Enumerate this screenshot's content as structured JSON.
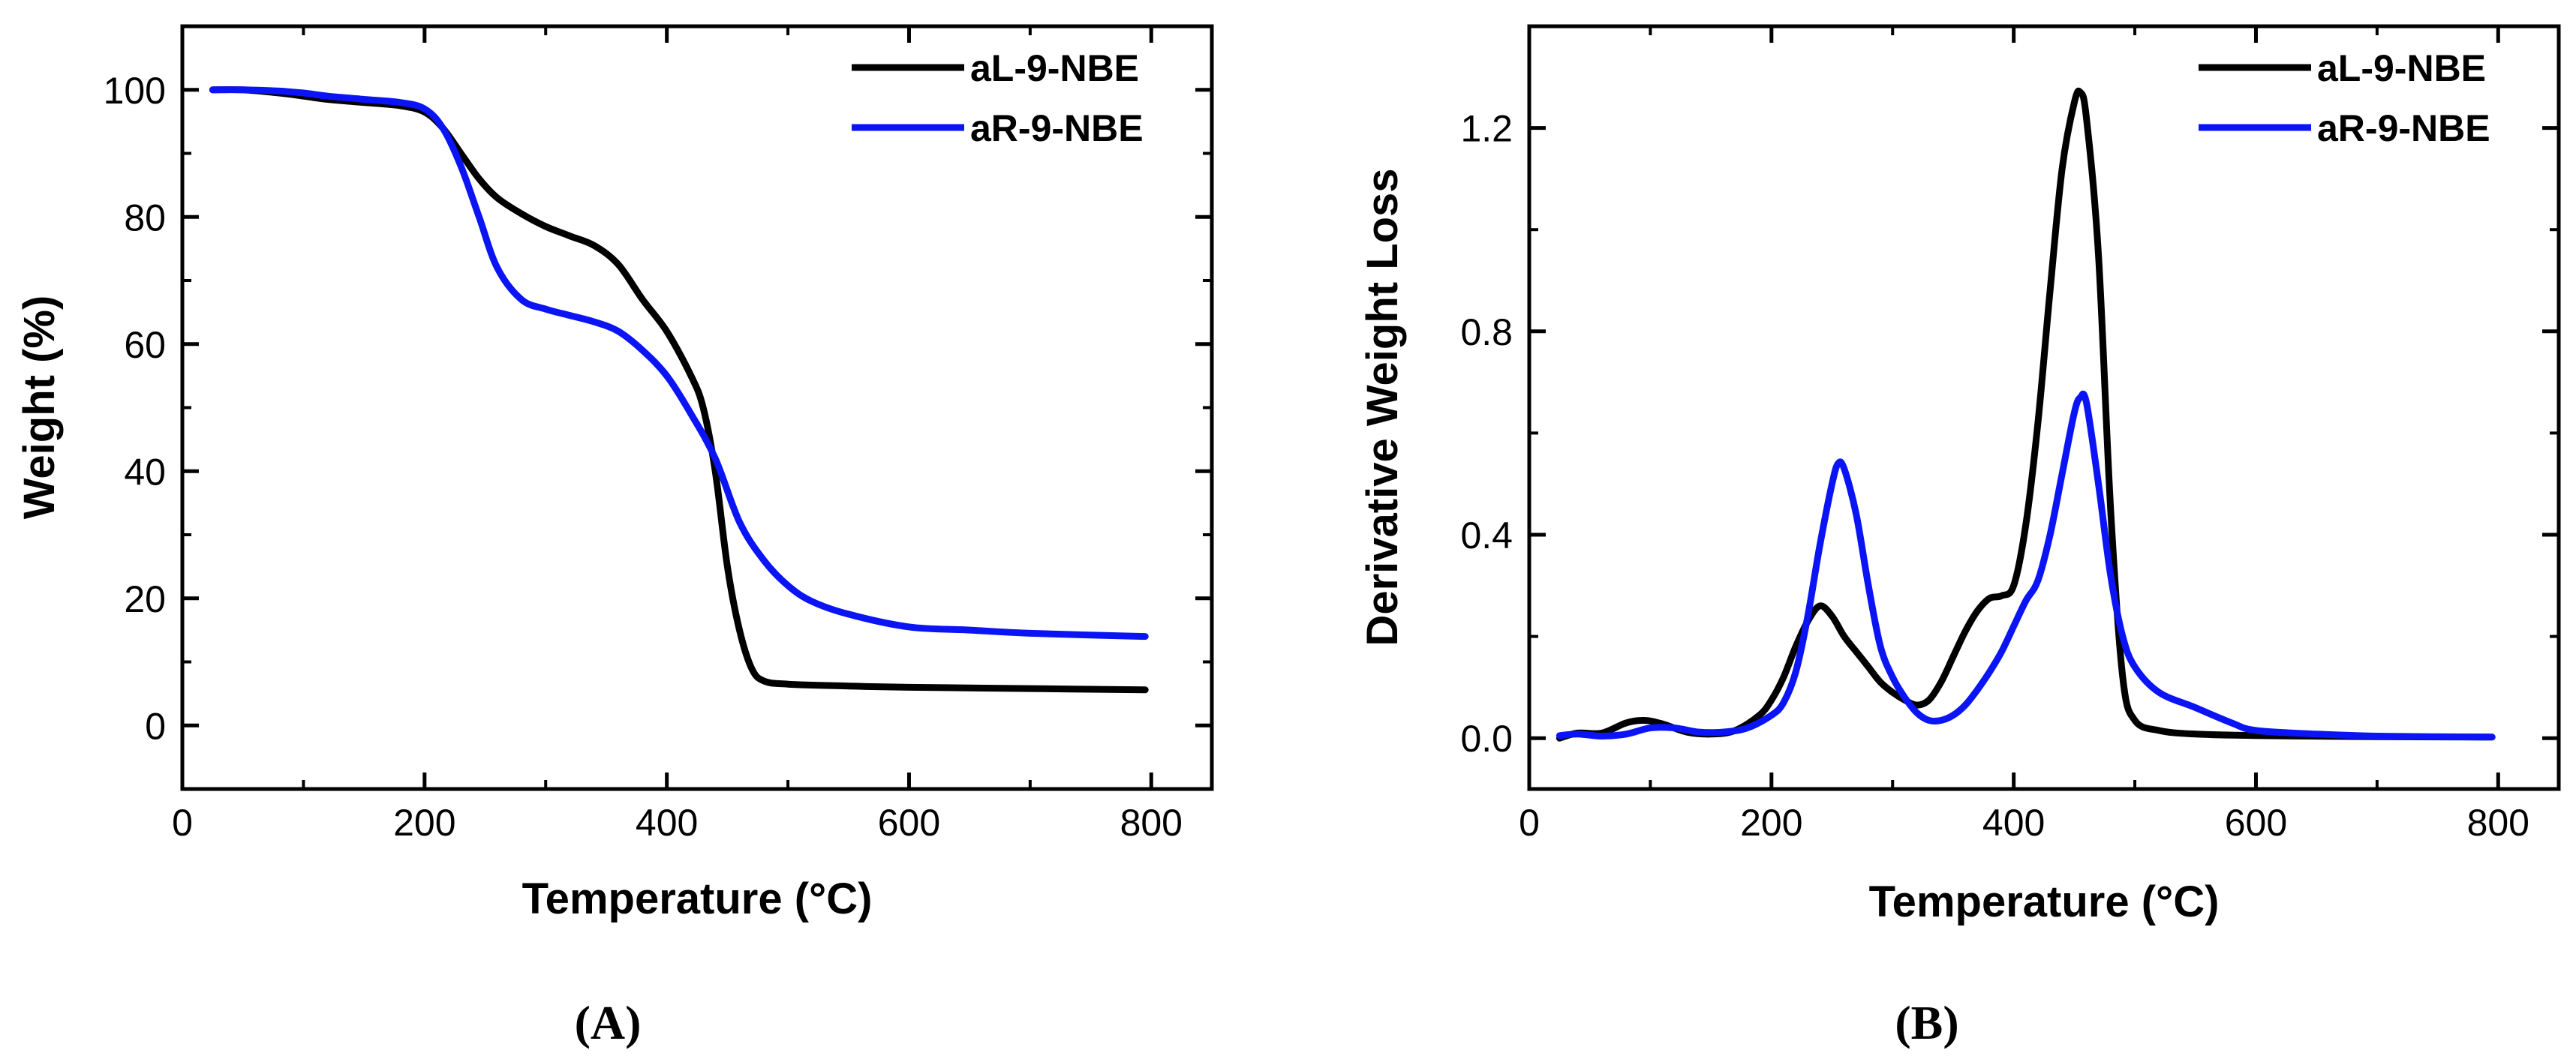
{
  "chart_data": [
    {
      "type": "line",
      "panel_label": "(A)",
      "xlabel": "Temperature (°C)",
      "ylabel": "Weight (%)",
      "xlim": [
        0,
        850
      ],
      "ylim": [
        -10,
        110
      ],
      "xticks": [
        0,
        200,
        400,
        600,
        800
      ],
      "xtick_labels": [
        "0",
        "200",
        "400",
        "600",
        "800"
      ],
      "yticks": [
        0,
        20,
        40,
        60,
        80,
        100
      ],
      "ytick_labels": [
        "0",
        "20",
        "40",
        "60",
        "80",
        "100"
      ],
      "legend_position": "top-right",
      "series": [
        {
          "name": "aL-9-NBE",
          "color": "#000000",
          "x": [
            25,
            50,
            80,
            100,
            120,
            150,
            180,
            200,
            215,
            230,
            245,
            260,
            280,
            300,
            320,
            340,
            360,
            380,
            400,
            420,
            430,
            440,
            450,
            460,
            470,
            480,
            500,
            550,
            600,
            700,
            795
          ],
          "y": [
            100,
            100,
            99.5,
            99,
            98.5,
            98,
            97.5,
            96.5,
            94,
            90,
            86,
            83,
            80.5,
            78.5,
            77,
            75.5,
            72.5,
            67,
            62,
            55,
            50,
            40,
            25,
            15,
            9,
            7,
            6.5,
            6.2,
            6,
            5.8,
            5.6
          ]
        },
        {
          "name": "aR-9-NBE",
          "color": "#0a14f5",
          "x": [
            25,
            50,
            80,
            100,
            120,
            150,
            180,
            200,
            215,
            230,
            245,
            260,
            280,
            300,
            320,
            340,
            360,
            380,
            400,
            420,
            440,
            460,
            480,
            500,
            520,
            550,
            600,
            650,
            700,
            795
          ],
          "y": [
            100,
            100,
            99.8,
            99.5,
            99,
            98.5,
            98,
            97,
            94,
            88,
            80,
            72,
            67,
            65.5,
            64.5,
            63.5,
            62,
            59,
            55,
            49,
            42,
            32,
            26,
            22,
            19.5,
            17.5,
            15.5,
            15,
            14.5,
            14
          ]
        }
      ]
    },
    {
      "type": "line",
      "panel_label": "(B)",
      "xlabel": "Temperature (°C)",
      "ylabel": "Derivative Weight Loss",
      "xlim": [
        0,
        850
      ],
      "ylim": [
        -0.1,
        1.4
      ],
      "xticks": [
        0,
        200,
        400,
        600,
        800
      ],
      "xtick_labels": [
        "0",
        "200",
        "400",
        "600",
        "800"
      ],
      "yticks": [
        0,
        0.4,
        0.8,
        1.2
      ],
      "ytick_labels": [
        "0.0",
        "0.4",
        "0.8",
        "1.2"
      ],
      "legend_position": "top-right",
      "series": [
        {
          "name": "aL-9-NBE",
          "color": "#000000",
          "x": [
            25,
            40,
            60,
            80,
            95,
            110,
            130,
            150,
            170,
            190,
            200,
            210,
            220,
            230,
            240,
            250,
            260,
            270,
            280,
            290,
            300,
            310,
            320,
            330,
            340,
            350,
            360,
            370,
            380,
            390,
            400,
            410,
            420,
            430,
            440,
            450,
            455,
            460,
            470,
            480,
            490,
            500,
            520,
            550,
            600,
            700,
            795
          ],
          "y": [
            0,
            0.01,
            0.01,
            0.03,
            0.035,
            0.028,
            0.012,
            0.008,
            0.015,
            0.045,
            0.075,
            0.12,
            0.18,
            0.23,
            0.26,
            0.24,
            0.2,
            0.17,
            0.14,
            0.11,
            0.09,
            0.075,
            0.065,
            0.075,
            0.11,
            0.16,
            0.21,
            0.25,
            0.275,
            0.28,
            0.3,
            0.42,
            0.62,
            0.88,
            1.12,
            1.25,
            1.27,
            1.22,
            0.95,
            0.45,
            0.12,
            0.035,
            0.015,
            0.008,
            0.005,
            0.003,
            0.002
          ]
        },
        {
          "name": "aR-9-NBE",
          "color": "#0a14f5",
          "x": [
            25,
            40,
            60,
            80,
            100,
            120,
            140,
            160,
            180,
            200,
            210,
            220,
            230,
            240,
            250,
            255,
            260,
            270,
            280,
            290,
            300,
            310,
            320,
            330,
            340,
            350,
            360,
            370,
            380,
            390,
            400,
            410,
            420,
            430,
            440,
            450,
            455,
            460,
            470,
            480,
            490,
            500,
            520,
            550,
            580,
            600,
            650,
            700,
            795
          ],
          "y": [
            0.005,
            0.008,
            0.004,
            0.008,
            0.02,
            0.02,
            0.012,
            0.012,
            0.02,
            0.045,
            0.07,
            0.13,
            0.24,
            0.38,
            0.5,
            0.54,
            0.53,
            0.44,
            0.3,
            0.18,
            0.12,
            0.08,
            0.05,
            0.035,
            0.035,
            0.045,
            0.065,
            0.095,
            0.13,
            0.17,
            0.22,
            0.27,
            0.31,
            0.4,
            0.52,
            0.64,
            0.67,
            0.66,
            0.5,
            0.32,
            0.2,
            0.14,
            0.09,
            0.06,
            0.03,
            0.015,
            0.008,
            0.004,
            0.002
          ]
        }
      ]
    }
  ]
}
